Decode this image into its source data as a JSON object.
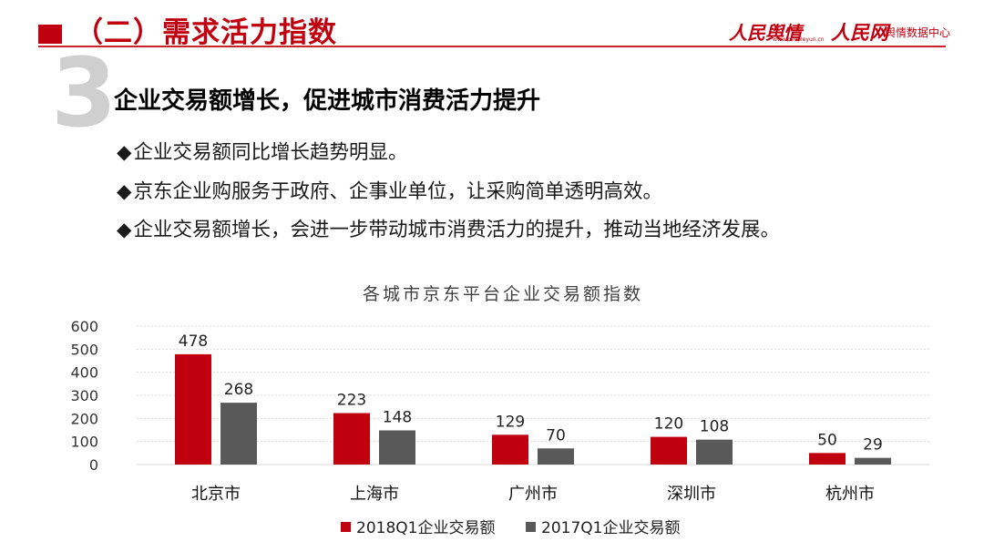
{
  "header": {
    "title": "（二）需求活力指数",
    "logo_primary": "人民舆情",
    "logo_primary_url": "www.peopleyun.cn",
    "logo_secondary": "人民网",
    "logo_secondary_text": "舆情数据中心",
    "accent_color": "#c0000f"
  },
  "section": {
    "number": "3",
    "title": "企业交易额增长，促进城市消费活力提升",
    "bullet_marker": "◆",
    "bullets": [
      "企业交易额同比增长趋势明显。",
      "京东企业购服务于政府、企事业单位，让采购简单透明高效。",
      "企业交易额增长，会进一步带动城市消费活力的提升，推动当地经济发展。"
    ]
  },
  "chart_data": {
    "type": "bar",
    "title": "各城市京东平台企业交易额指数",
    "categories": [
      "北京市",
      "上海市",
      "广州市",
      "深圳市",
      "杭州市"
    ],
    "series": [
      {
        "name": "2018Q1企业交易额",
        "values": [
          478,
          223,
          129,
          120,
          50
        ],
        "color": "#c0000f"
      },
      {
        "name": "2017Q1企业交易额",
        "values": [
          268,
          148,
          70,
          108,
          29
        ],
        "color": "#595959"
      }
    ],
    "ylim": [
      0,
      600
    ],
    "yticks": [
      0,
      100,
      200,
      300,
      400,
      500,
      600
    ],
    "grid": true,
    "legend_position": "bottom",
    "data_labels": true
  }
}
